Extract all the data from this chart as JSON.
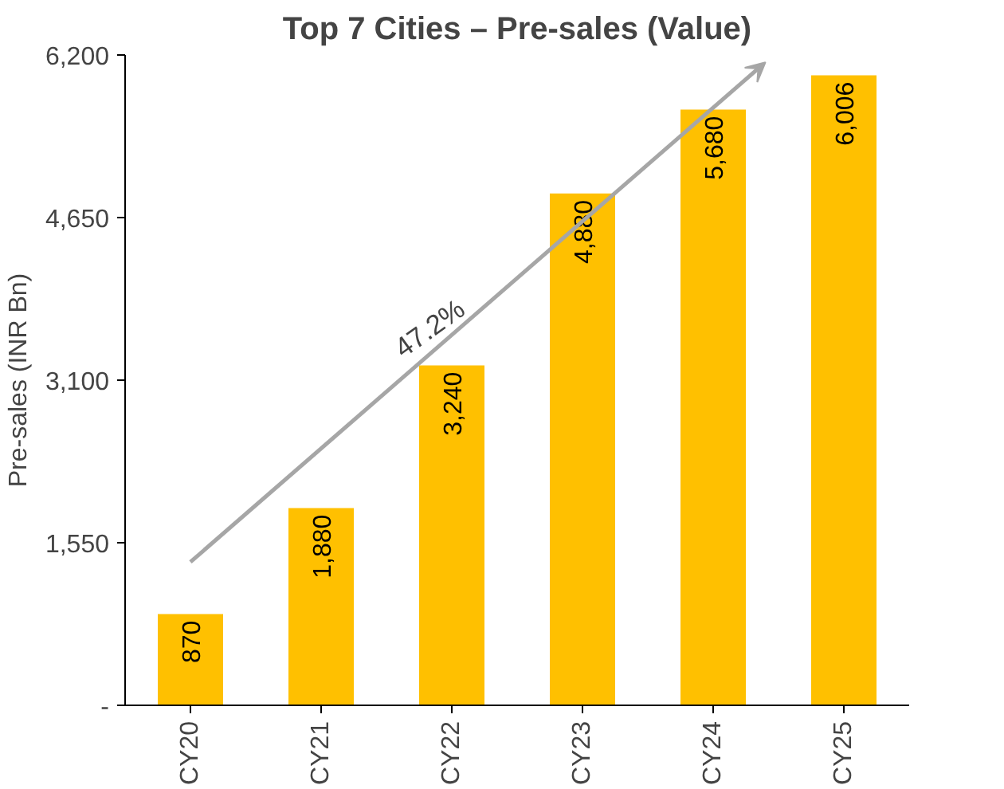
{
  "chart_data": {
    "type": "bar",
    "title": "Top 7 Cities – Pre-sales (Value)",
    "ylabel": "Pre-sales (INR Bn)",
    "categories": [
      "CY20",
      "CY21",
      "CY22",
      "CY23",
      "CY24",
      "CY25"
    ],
    "values": [
      870,
      1880,
      3240,
      4880,
      5680,
      6006
    ],
    "value_labels": [
      "870",
      "1,880",
      "3,240",
      "4,880",
      "5,680",
      "6,006"
    ],
    "color": "#ffc000",
    "ylim": [
      0,
      6200
    ],
    "yticks": [
      {
        "value": 0,
        "label": "-"
      },
      {
        "value": 1550,
        "label": "1,550"
      },
      {
        "value": 3100,
        "label": "3,100"
      },
      {
        "value": 4650,
        "label": "4,650"
      },
      {
        "value": 6200,
        "label": "6,200"
      }
    ],
    "annotations": [
      "47.2%"
    ],
    "grid": false
  }
}
